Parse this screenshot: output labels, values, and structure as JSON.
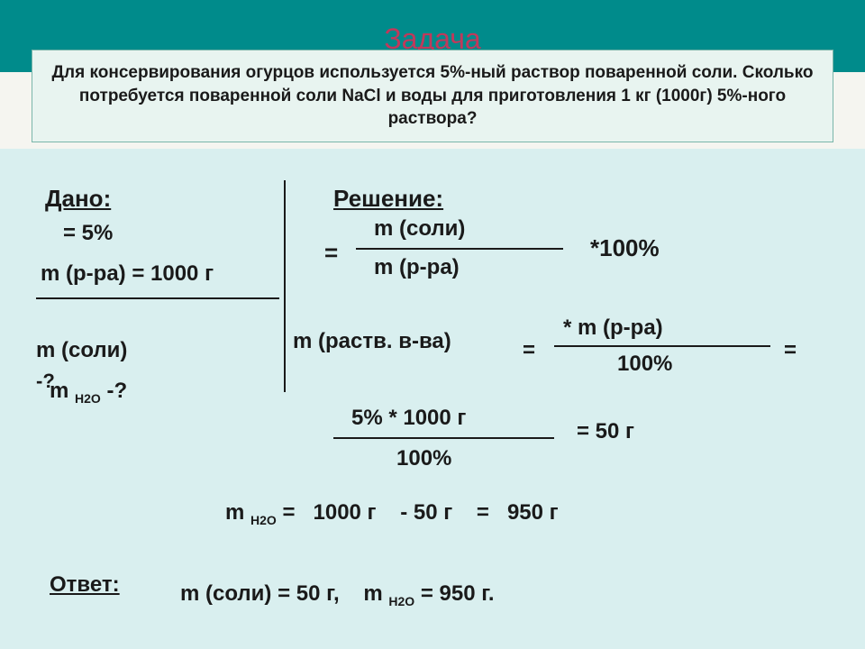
{
  "title": "Задача",
  "problem": "Для консервирования огурцов используется 5%-ный раствор поваренной соли. Сколько потребуется поваренной соли NaCl и воды для приготовления 1 кг (1000г) 5%-ного раствора?",
  "dano_label": "Дано:",
  "given": {
    "w": "= 5%",
    "m_solution": "m (р-ра) = 1000 г"
  },
  "find": {
    "salt": "m (соли)",
    "salt_q": "-?",
    "water": "m н2о -?"
  },
  "resh_label": "Решение:",
  "eq1": {
    "eq": "=",
    "num": "m (соли)",
    "den": "m (р-ра)",
    "mult": "*100%"
  },
  "eq2": {
    "left": "m (раств. в-ва)",
    "eq": "=",
    "num": "* m (р-ра)",
    "den": "100%",
    "eq2": "="
  },
  "eq3": {
    "num": "5% * 1000 г",
    "den": "100%",
    "result": "=  50 г"
  },
  "eq4": "m н2о =   1000 г    - 50 г    =   950 г",
  "answer_label": "Ответ:",
  "answer_text": "m (соли) = 50 г,    m н2о = 950 г.",
  "colors": {
    "header_bg": "#008b8b",
    "title_color": "#c0395b",
    "content_bg": "#d9efef",
    "problem_bg": "#e8f4f0",
    "problem_border": "#7ab5aa",
    "text": "#1a1a1a"
  }
}
